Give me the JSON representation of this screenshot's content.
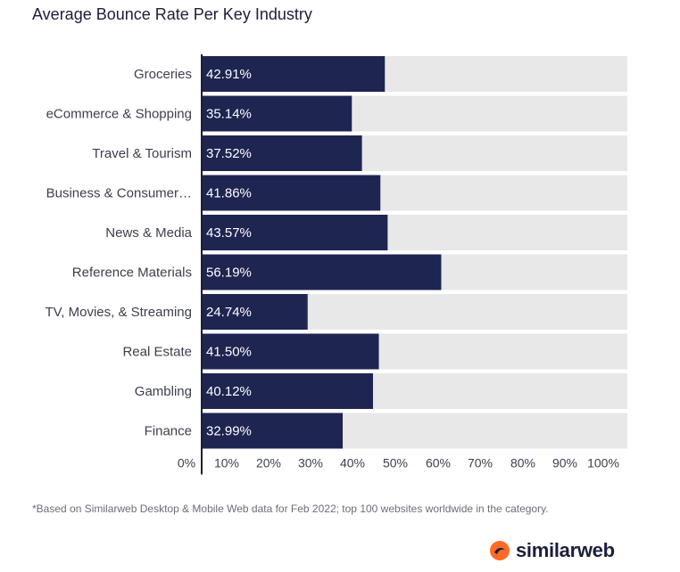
{
  "colors": {
    "bar": "#1e2551",
    "track": "#e8e8e8",
    "brand_orange": "#ff6b26",
    "brand_navy": "#1b1f3b"
  },
  "footnote": "*Based on Similarweb Desktop & Mobile Web data for Feb 2022; top 100 websites worldwide in the category.",
  "brand": {
    "name": "similarweb",
    "icon": "similarweb-logo-icon"
  },
  "chart_data": {
    "type": "bar",
    "orientation": "horizontal",
    "title": "Average Bounce Rate Per Key Industry",
    "xlabel": "",
    "ylabel": "",
    "xlim": [
      0,
      100
    ],
    "grid": false,
    "categories": [
      "Groceries",
      "eCommerce & Shopping",
      "Travel & Tourism",
      "Business & Consumer…",
      "News & Media",
      "Reference Materials",
      "TV, Movies, & Streaming",
      "Real Estate",
      "Gambling",
      "Finance"
    ],
    "values": [
      42.91,
      35.14,
      37.52,
      41.86,
      43.57,
      56.19,
      24.74,
      41.5,
      40.12,
      32.99
    ],
    "value_labels": [
      "42.91%",
      "35.14%",
      "37.52%",
      "41.86%",
      "43.57%",
      "56.19%",
      "24.74%",
      "41.50%",
      "40.12%",
      "32.99%"
    ],
    "x_ticks": [
      0,
      10,
      20,
      30,
      40,
      50,
      60,
      70,
      80,
      90,
      100
    ],
    "x_tick_labels": [
      "0%",
      "10%",
      "20%",
      "30%",
      "40%",
      "50%",
      "60%",
      "70%",
      "80%",
      "90%",
      "100%"
    ]
  }
}
